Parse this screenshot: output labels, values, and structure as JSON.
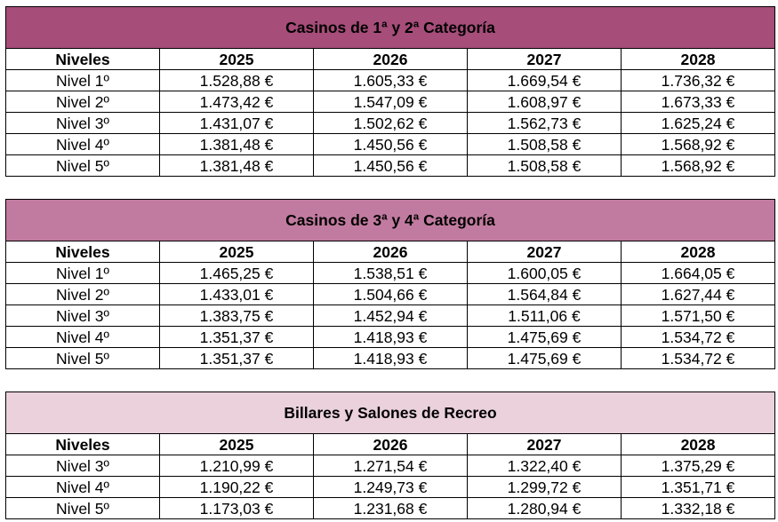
{
  "tables": [
    {
      "title": "Casinos de 1ª y 2ª Categoría",
      "color": "#a64d79",
      "header": [
        "Niveles",
        "2025",
        "2026",
        "2027",
        "2028"
      ],
      "rows": [
        [
          "Nivel 1º",
          "1.528,88 €",
          "1.605,33 €",
          "1.669,54 €",
          "1.736,32 €"
        ],
        [
          "Nivel 2º",
          "1.473,42 €",
          "1.547,09 €",
          "1.608,97 €",
          "1.673,33 €"
        ],
        [
          "Nivel 3º",
          "1.431,07 €",
          "1.502,62 €",
          "1.562,73 €",
          "1.625,24 €"
        ],
        [
          "Nivel 4º",
          "1.381,48 €",
          "1.450,56 €",
          "1.508,58 €",
          "1.568,92 €"
        ],
        [
          "Nivel 5º",
          "1.381,48 €",
          "1.450,56 €",
          "1.508,58 €",
          "1.568,92 €"
        ]
      ]
    },
    {
      "title": "Casinos de 3ª y 4ª Categoría",
      "color": "#c27ba0",
      "header": [
        "Niveles",
        "2025",
        "2026",
        "2027",
        "2028"
      ],
      "rows": [
        [
          "Nivel 1º",
          "1.465,25 €",
          "1.538,51 €",
          "1.600,05 €",
          "1.664,05 €"
        ],
        [
          "Nivel 2º",
          "1.433,01 €",
          "1.504,66 €",
          "1.564,84 €",
          "1.627,44 €"
        ],
        [
          "Nivel 3º",
          "1.383,75 €",
          "1.452,94 €",
          "1.511,06 €",
          "1.571,50 €"
        ],
        [
          "Nivel 4º",
          "1.351,37 €",
          "1.418,93 €",
          "1.475,69 €",
          "1.534,72 €"
        ],
        [
          "Nivel 5º",
          "1.351,37 €",
          "1.418,93 €",
          "1.475,69 €",
          "1.534,72 €"
        ]
      ]
    },
    {
      "title": "Billares y Salones de Recreo",
      "color": "#ead1dc",
      "header": [
        "Niveles",
        "2025",
        "2026",
        "2027",
        "2028"
      ],
      "rows": [
        [
          "Nivel 3º",
          "1.210,99 €",
          "1.271,54 €",
          "1.322,40 €",
          "1.375,29 €"
        ],
        [
          "Nivel 4º",
          "1.190,22 €",
          "1.249,73 €",
          "1.299,72 €",
          "1.351,71 €"
        ],
        [
          "Nivel 5º",
          "1.173,03 €",
          "1.231,68 €",
          "1.280,94 €",
          "1.332,18 €"
        ]
      ]
    }
  ]
}
